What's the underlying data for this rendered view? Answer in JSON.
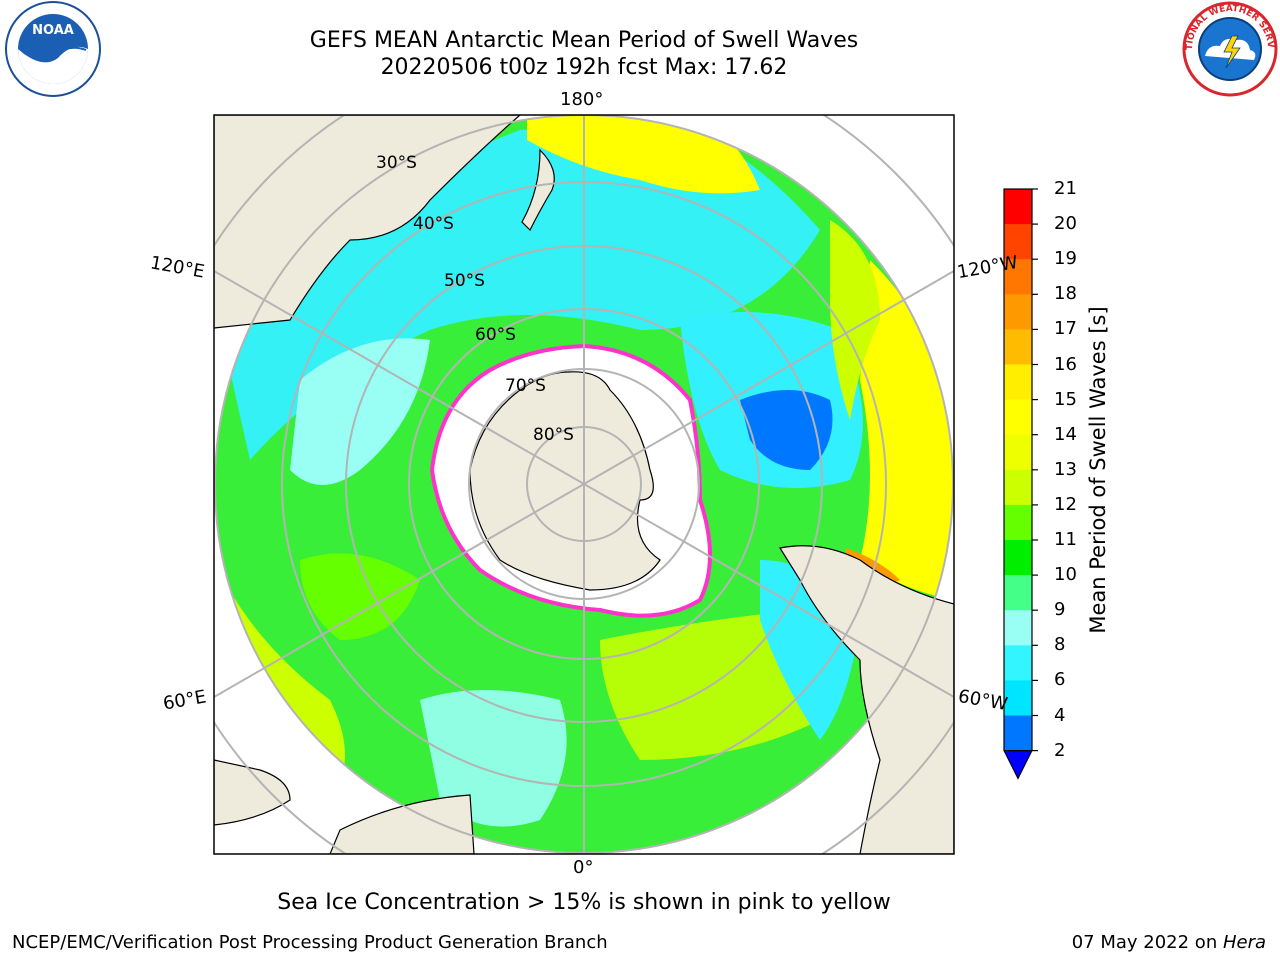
{
  "header": {
    "title_line1": "GEFS MEAN Antarctic Mean Period of Swell Waves",
    "title_line2": "20220506 t00z 192h fcst   Max: 17.62"
  },
  "logos": {
    "left": {
      "icon": "noaa-logo",
      "text": "NOAA"
    },
    "right": {
      "icon": "national-weather-service-logo",
      "text": "NATIONAL WEATHER SERVICE"
    }
  },
  "map": {
    "projection": "south-polar-stereographic",
    "longitude_labels": {
      "top": "180°",
      "bottom": "0°",
      "upper_left": "120°E",
      "upper_right": "120°W",
      "lower_left": "60°E",
      "lower_right": "60°W"
    },
    "latitude_labels": [
      "30°S",
      "40°S",
      "50°S",
      "60°S",
      "70°S",
      "80°S"
    ],
    "colors": {
      "land": "#efebdc",
      "grid": "#b4b4b4",
      "ice_edge": "#ff33cc",
      "frame": "#000000"
    }
  },
  "colorbar": {
    "label": "Mean Period of Swell Waves [s]",
    "ticks": [
      "21",
      "20",
      "19",
      "18",
      "17",
      "16",
      "15",
      "14",
      "13",
      "12",
      "11",
      "10",
      "9",
      "8",
      "6",
      "4",
      "2"
    ],
    "levels": [
      {
        "from": 2,
        "to": 4,
        "color": "#0077ff"
      },
      {
        "from": 4,
        "to": 6,
        "color": "#00e5ff"
      },
      {
        "from": 6,
        "to": 8,
        "color": "#33f5ff"
      },
      {
        "from": 8,
        "to": 9,
        "color": "#99fff5"
      },
      {
        "from": 9,
        "to": 10,
        "color": "#44ff88"
      },
      {
        "from": 10,
        "to": 11,
        "color": "#00ee00"
      },
      {
        "from": 11,
        "to": 12,
        "color": "#66ff00"
      },
      {
        "from": 12,
        "to": 13,
        "color": "#ccff00"
      },
      {
        "from": 13,
        "to": 14,
        "color": "#eeff00"
      },
      {
        "from": 14,
        "to": 15,
        "color": "#ffff00"
      },
      {
        "from": 15,
        "to": 16,
        "color": "#ffee00"
      },
      {
        "from": 16,
        "to": 17,
        "color": "#ffbb00"
      },
      {
        "from": 17,
        "to": 18,
        "color": "#ff9900"
      },
      {
        "from": 18,
        "to": 19,
        "color": "#ff7700"
      },
      {
        "from": 19,
        "to": 20,
        "color": "#ff4400"
      },
      {
        "from": 20,
        "to": 21,
        "color": "#ff0000"
      }
    ],
    "extend_min_color": "#0000ff"
  },
  "footer": {
    "note": "Sea Ice Concentration > 15% is shown in pink to yellow",
    "credit": "NCEP/EMC/Verification Post Processing Product Generation Branch",
    "date": "07 May 2022 on ",
    "machine": "Hera"
  }
}
